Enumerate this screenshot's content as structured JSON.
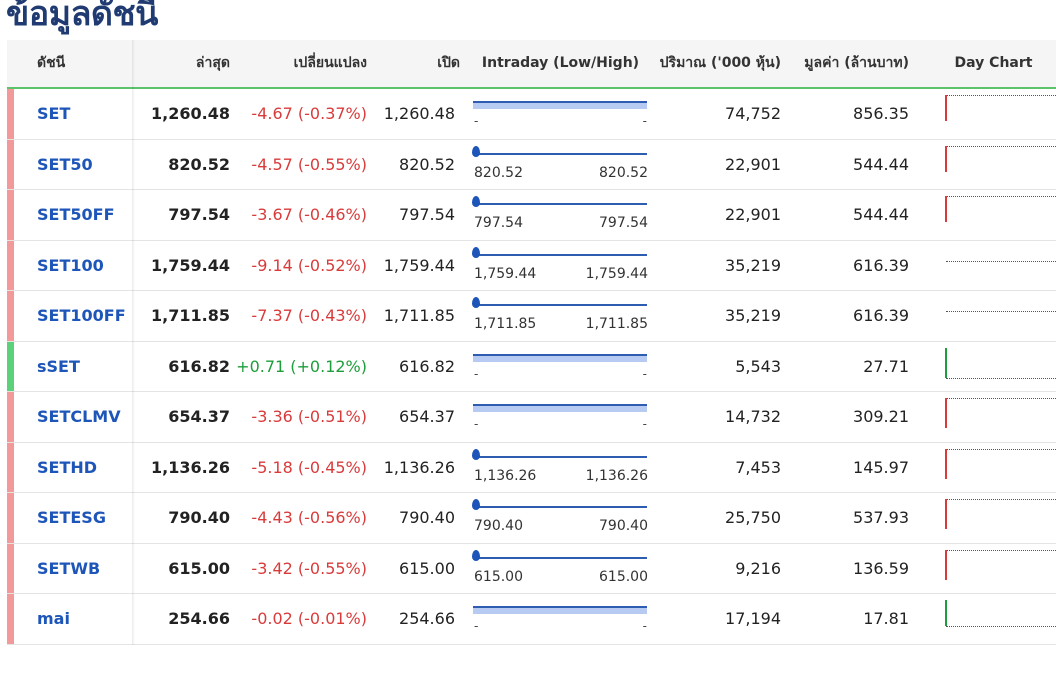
{
  "page_title": "ข้อมูลดัชนี",
  "colors": {
    "up": "#1e9e3a",
    "down": "#d93b3b",
    "up_bar": "#5bd27a",
    "down_bar": "#f29a9a",
    "link": "#1d55b8",
    "header_rule": "#5dc36b"
  },
  "headers": {
    "index": "ดัชนี",
    "last": "ล่าสุด",
    "change": "เปลี่ยนแปลง",
    "open": "เปิด",
    "intraday": "Intraday (Low/High)",
    "volume": "ปริมาณ ('000 หุ้น)",
    "value": "มูลค่า (ล้านบาท)",
    "day_chart": "Day Chart"
  },
  "rows": [
    {
      "symbol": "SET",
      "last": "1,260.48",
      "change": "-4.67 (-0.37%)",
      "dir": "down",
      "open": "1,260.48",
      "intraday_low": "-",
      "intraday_high": "-",
      "volume": "74,752",
      "value": "856.35"
    },
    {
      "symbol": "SET50",
      "last": "820.52",
      "change": "-4.57 (-0.55%)",
      "dir": "down",
      "open": "820.52",
      "intraday_low": "820.52",
      "intraday_high": "820.52",
      "volume": "22,901",
      "value": "544.44"
    },
    {
      "symbol": "SET50FF",
      "last": "797.54",
      "change": "-3.67 (-0.46%)",
      "dir": "down",
      "open": "797.54",
      "intraday_low": "797.54",
      "intraday_high": "797.54",
      "volume": "22,901",
      "value": "544.44"
    },
    {
      "symbol": "SET100",
      "last": "1,759.44",
      "change": "-9.14 (-0.52%)",
      "dir": "down",
      "open": "1,759.44",
      "intraday_low": "1,759.44",
      "intraday_high": "1,759.44",
      "volume": "35,219",
      "value": "616.39"
    },
    {
      "symbol": "SET100FF",
      "last": "1,711.85",
      "change": "-7.37 (-0.43%)",
      "dir": "down",
      "open": "1,711.85",
      "intraday_low": "1,711.85",
      "intraday_high": "1,711.85",
      "volume": "35,219",
      "value": "616.39"
    },
    {
      "symbol": "sSET",
      "last": "616.82",
      "change": "+0.71 (+0.12%)",
      "dir": "up",
      "open": "616.82",
      "intraday_low": "-",
      "intraday_high": "-",
      "volume": "5,543",
      "value": "27.71"
    },
    {
      "symbol": "SETCLMV",
      "last": "654.37",
      "change": "-3.36 (-0.51%)",
      "dir": "down",
      "open": "654.37",
      "intraday_low": "-",
      "intraday_high": "-",
      "volume": "14,732",
      "value": "309.21"
    },
    {
      "symbol": "SETHD",
      "last": "1,136.26",
      "change": "-5.18 (-0.45%)",
      "dir": "down",
      "open": "1,136.26",
      "intraday_low": "1,136.26",
      "intraday_high": "1,136.26",
      "volume": "7,453",
      "value": "145.97"
    },
    {
      "symbol": "SETESG",
      "last": "790.40",
      "change": "-4.43 (-0.56%)",
      "dir": "down",
      "open": "790.40",
      "intraday_low": "790.40",
      "intraday_high": "790.40",
      "volume": "25,750",
      "value": "537.93"
    },
    {
      "symbol": "SETWB",
      "last": "615.00",
      "change": "-3.42 (-0.55%)",
      "dir": "down",
      "open": "615.00",
      "intraday_low": "615.00",
      "intraday_high": "615.00",
      "volume": "9,216",
      "value": "136.59"
    },
    {
      "symbol": "mai",
      "last": "254.66",
      "change": "-0.02 (-0.01%)",
      "dir": "down",
      "open": "254.66",
      "intraday_low": "-",
      "intraday_high": "-",
      "volume": "17,194",
      "value": "17.81"
    }
  ]
}
